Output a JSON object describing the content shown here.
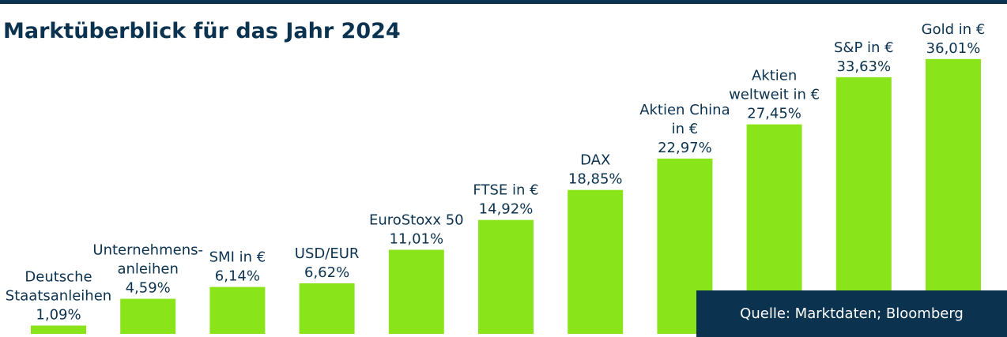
{
  "title": "Marktüberblick für das Jahr 2024",
  "source": "Quelle: Marktdaten; Bloomberg",
  "colors": {
    "bar": "#8ae41a",
    "text": "#0b3350",
    "box": "#0b3350"
  },
  "chart_data": {
    "type": "bar",
    "title": "Marktüberblick für das Jahr 2024",
    "xlabel": "",
    "ylabel": "",
    "ylim": [
      0,
      40
    ],
    "grid": false,
    "categories": [
      "Deutsche Staatsanleihen",
      "Unternehmensanleihen",
      "SMI in €",
      "USD/EUR",
      "EuroStoxx 50",
      "FTSE in €",
      "DAX",
      "Aktien China in €",
      "Aktien weltweit in €",
      "S&P in €",
      "Gold in €"
    ],
    "label_lines": [
      [
        "Deutsche",
        "Staatsanleihen"
      ],
      [
        "Unternehmens-",
        "anleihen"
      ],
      [
        "SMI in €"
      ],
      [
        "USD/EUR"
      ],
      [
        "EuroStoxx 50"
      ],
      [
        "FTSE in €"
      ],
      [
        "DAX"
      ],
      [
        "Aktien China",
        "in €"
      ],
      [
        "Aktien",
        "weltweit in €"
      ],
      [
        "S&P in €"
      ],
      [
        "Gold in €"
      ]
    ],
    "values": [
      1.09,
      4.59,
      6.14,
      6.62,
      11.01,
      14.92,
      18.85,
      22.97,
      27.45,
      33.63,
      36.01
    ],
    "value_labels": [
      "1,09%",
      "4,59%",
      "6,14%",
      "6,62%",
      "11,01%",
      "14,92%",
      "18,85%",
      "22,97%",
      "27,45%",
      "33,63%",
      "36,01%"
    ]
  }
}
